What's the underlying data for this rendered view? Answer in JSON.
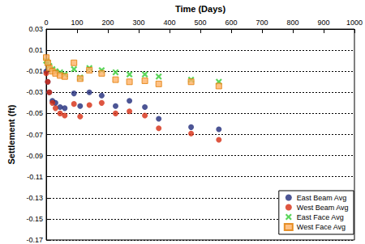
{
  "chart_data": {
    "type": "scatter",
    "x_label": "Time (Days)",
    "y_label": "Settlement (ft)",
    "x": [
      0,
      5,
      10,
      20,
      30,
      45,
      60,
      90,
      110,
      140,
      180,
      225,
      270,
      320,
      365,
      470,
      560
    ],
    "series": [
      {
        "name": "East Beam Avg",
        "color": "#1f2a7a",
        "marker": "circle",
        "values": [
          -0.01,
          -0.02,
          -0.03,
          -0.038,
          -0.04,
          -0.044,
          -0.045,
          -0.031,
          -0.043,
          -0.03,
          -0.033,
          -0.043,
          -0.038,
          -0.044,
          -0.055,
          -0.063,
          -0.065
        ]
      },
      {
        "name": "West Beam Avg",
        "color": "#d62c12",
        "marker": "circle",
        "values": [
          -0.012,
          -0.02,
          -0.03,
          -0.04,
          -0.045,
          -0.05,
          -0.052,
          -0.041,
          -0.053,
          -0.042,
          -0.04,
          -0.05,
          -0.048,
          -0.052,
          -0.064,
          -0.069,
          -0.075
        ]
      },
      {
        "name": "East Face Avg",
        "color": "#33cc33",
        "marker": "x",
        "values": [
          0.0,
          -0.002,
          -0.005,
          -0.008,
          -0.01,
          -0.011,
          -0.013,
          -0.008,
          -0.016,
          -0.007,
          -0.009,
          -0.011,
          -0.013,
          -0.013,
          -0.015,
          -0.018,
          -0.02
        ]
      },
      {
        "name": "West Face Avg",
        "color": "#ffb266",
        "marker": "square",
        "values": [
          0.003,
          -0.002,
          -0.007,
          -0.01,
          -0.012,
          -0.014,
          -0.015,
          -0.002,
          -0.017,
          -0.009,
          -0.012,
          -0.018,
          -0.02,
          -0.019,
          -0.022,
          -0.02,
          -0.024
        ]
      }
    ],
    "xlim": [
      0,
      1000
    ],
    "xticks": [
      0,
      100,
      200,
      300,
      400,
      500,
      600,
      700,
      800,
      900,
      1000
    ],
    "ylim": [
      -0.17,
      0.03
    ],
    "yticks": [
      -0.17,
      -0.15,
      -0.13,
      -0.11,
      -0.09,
      -0.07,
      -0.05,
      -0.03,
      -0.01,
      0.01,
      0.03
    ],
    "grid": true,
    "legend": "lower right"
  }
}
